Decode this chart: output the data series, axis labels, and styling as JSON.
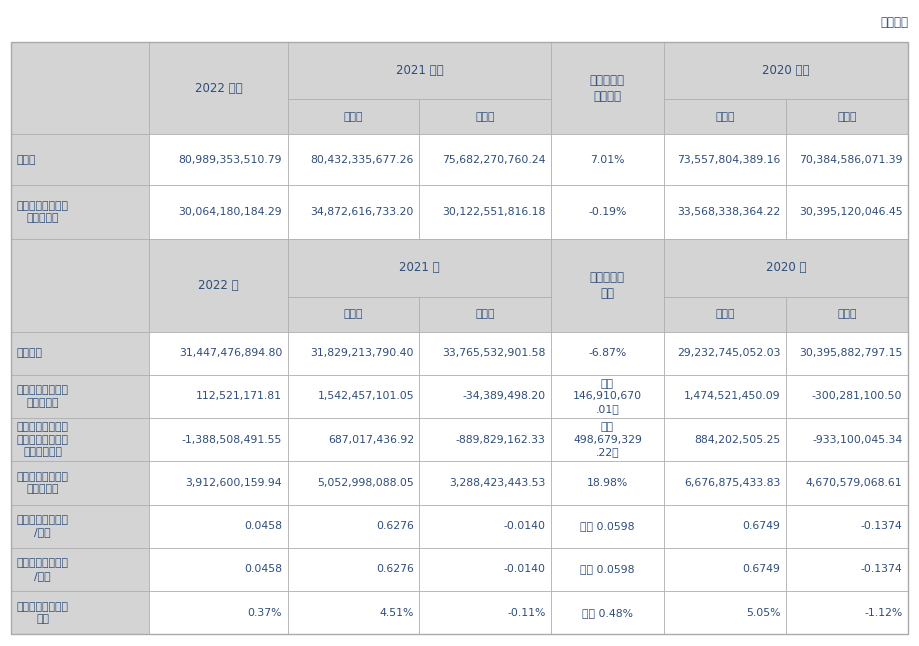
{
  "unit_text": "单位：元",
  "header_bg": "#d4d4d4",
  "white_bg": "#ffffff",
  "border_color": "#aaaaaa",
  "text_color": "#2e4d7b",
  "fig_bg": "#ffffff",
  "top_section_rows": [
    [
      "总资产",
      "80,989,353,510.79",
      "80,432,335,677.26",
      "75,682,270,760.24",
      "7.01%",
      "73,557,804,389.16",
      "70,384,586,071.39"
    ],
    [
      "归属于上市公司股\n东的净资产",
      "30,064,180,184.29",
      "34,872,616,733.20",
      "30,122,551,816.18",
      "-0.19%",
      "33,568,338,364.22",
      "30,395,120,046.45"
    ]
  ],
  "bottom_section_rows": [
    [
      "营业收入",
      "31,447,476,894.80",
      "31,829,213,790.40",
      "33,765,532,901.58",
      "-6.87%",
      "29,232,745,052.03",
      "30,395,882,797.15"
    ],
    [
      "归属于上市公司股\n东的净利润",
      "112,521,171.81",
      "1,542,457,101.05",
      "-34,389,498.20",
      "增加\n146,910,670\n.01元",
      "1,474,521,450.09",
      "-300,281,100.50"
    ],
    [
      "归属于上市公司股\n东的扣除非经常性\n损益的净利润",
      "-1,388,508,491.55",
      "687,017,436.92",
      "-889,829,162.33",
      "减少\n498,679,329\n.22元",
      "884,202,505.25",
      "-933,100,045.34"
    ],
    [
      "经营活动产生的现\n金流量净额",
      "3,912,600,159.94",
      "5,052,998,088.05",
      "3,288,423,443.53",
      "18.98%",
      "6,676,875,433.83",
      "4,670,579,068.61"
    ],
    [
      "基本每股收益（元\n/股）",
      "0.0458",
      "0.6276",
      "-0.0140",
      "增加 0.0598",
      "0.6749",
      "-0.1374"
    ],
    [
      "稀释每股收益（元\n/股）",
      "0.0458",
      "0.6276",
      "-0.0140",
      "增加 0.0598",
      "0.6749",
      "-0.1374"
    ],
    [
      "加权平均净资产收\n益率",
      "0.37%",
      "4.51%",
      "-0.11%",
      "增加 0.48%",
      "5.05%",
      "-1.12%"
    ]
  ],
  "col_widths_rel": [
    1.45,
    1.45,
    1.38,
    1.38,
    1.18,
    1.28,
    1.28
  ],
  "font_size": 7.8,
  "header_font_size": 8.5
}
